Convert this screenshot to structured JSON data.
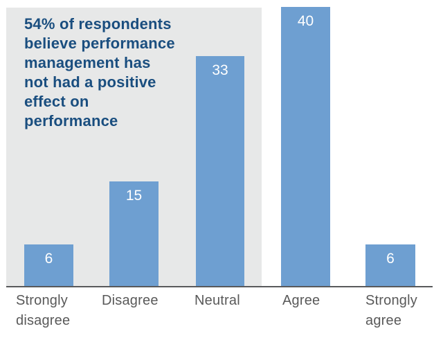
{
  "chart_data": {
    "type": "bar",
    "categories": [
      "Strongly disagree",
      "Disagree",
      "Neutral",
      "Agree",
      "Strongly agree"
    ],
    "values": [
      6,
      15,
      33,
      40,
      6
    ],
    "annotation": "54% of respondents\nbelieve performance\nmanagement has\nnot had a positive\neffect on\nperformance",
    "title": "",
    "xlabel": "",
    "ylabel": "",
    "ylim": [
      0,
      40
    ],
    "grid": false,
    "legend": "none",
    "value_labels_shown": true,
    "highlighted_categories": [
      "Strongly disagree",
      "Disagree",
      "Neutral"
    ],
    "colors": {
      "bar": "#6E9FD1",
      "highlight_background": "#E7E8E8",
      "annotation_text": "#1A4E7F",
      "category_label_text": "#595959",
      "axis_line": "#58595B",
      "value_label_text": "#FFFFFF"
    }
  }
}
